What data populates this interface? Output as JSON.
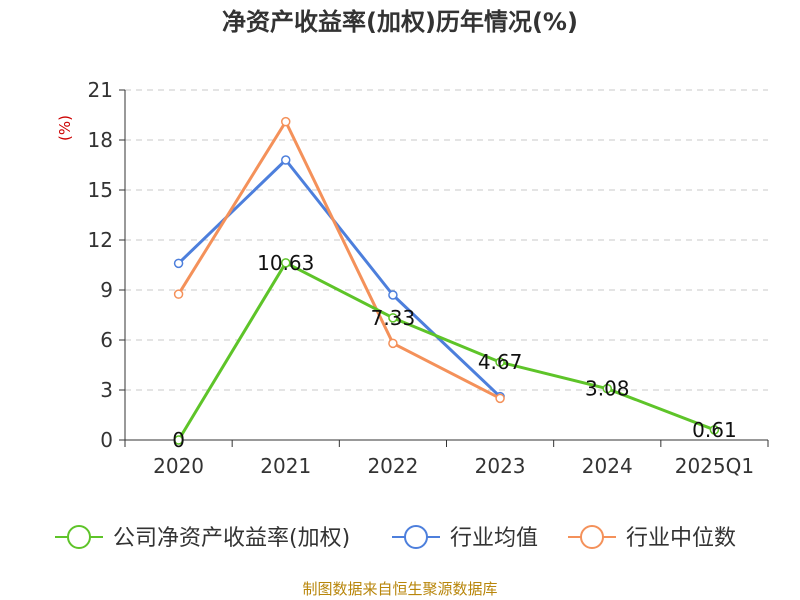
{
  "chart_data": {
    "type": "line",
    "title": "净资产收益率(加权)历年情况(%)",
    "ylabel": "(%)",
    "xlabel": "",
    "categories": [
      "2020",
      "2021",
      "2022",
      "2023",
      "2024",
      "2025Q1"
    ],
    "ylim": [
      0,
      21
    ],
    "yticks": [
      0,
      3,
      6,
      9,
      12,
      15,
      18,
      21
    ],
    "grid": true,
    "legend_position": "bottom",
    "series": [
      {
        "name": "公司净资产收益率(加权)",
        "color": "#5ec429",
        "values": [
          0,
          10.63,
          7.33,
          4.67,
          3.08,
          0.61
        ],
        "labels": [
          "0",
          "10.63",
          "7.33",
          "4.67",
          "3.08",
          "0.61"
        ]
      },
      {
        "name": "行业均值",
        "color": "#4d7fdc",
        "values": [
          10.6,
          16.8,
          8.7,
          2.6,
          null,
          null
        ]
      },
      {
        "name": "行业中位数",
        "color": "#f4915a",
        "values": [
          8.75,
          19.1,
          5.8,
          2.5,
          null,
          null
        ]
      }
    ],
    "source": "制图数据来自恒生聚源数据库"
  }
}
